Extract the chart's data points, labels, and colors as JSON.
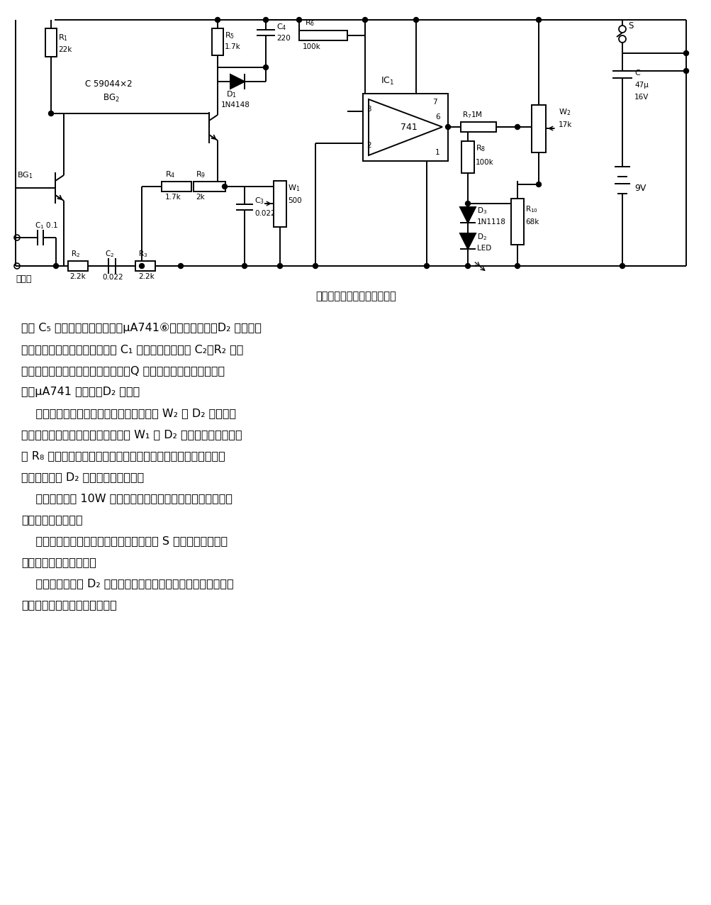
{
  "title": "简单实用的线圈短路测试电路",
  "bg_color": "#ffffff",
  "fig_width": 10.04,
  "fig_height": 12.76,
  "dpi": 100,
  "text_lines": [
    "接的 C₅ 的电压达到一定值时，μA741⑥脚输出高电平，D₂ 发光，表",
    "示振荡器工作正常。被测线圈经 C₁ 接入振荡回路，与 C₂、R₂ 选频",
    "电路并联，如待测线圈有一匹短路，Q 值便大大降低，文氏电桥停",
    "振，μA741 无输出，D₂ 息灬。",
    "    在电路装置完毕后，先将测试端短路，调 W₂ 使 D₂ 在刚息灬",
    "和刚点亮之间，再使测试端开路，调 W₁ 使 D₂ 息灬或点燃，否则改",
    "变 R₈ 的阻值。检验线路灵敏度的方法更为简单，用两只手分别捩",
    "住测试端，如 D₂ 息灬说明电路正常。",
    "    本电路适合测 10W 以下的小变压器。容量大的变压器因分布",
    "电容大不可能测准。",
    "    测试行偏转线圈时，要断开一根引线，因 S 形校正电容容量较",
    "大，会影响测量准确度。",
    "    测量中，如发现 D₂ 有间歇性息灬，说明线圈有不完全的短路，",
    "例如匹间与层间有铜锈存在等。"
  ]
}
